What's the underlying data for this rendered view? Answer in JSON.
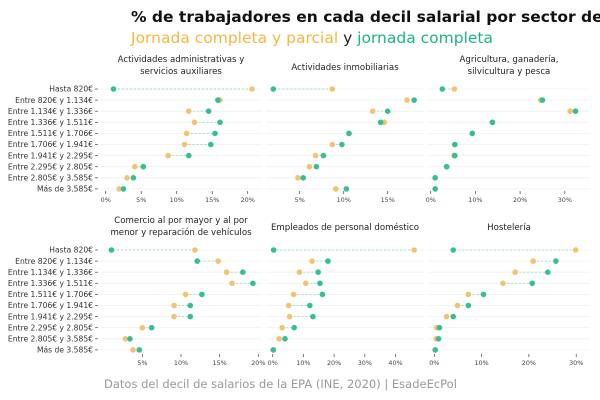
{
  "title": "% de trabajadores en cada decil salarial por sector de actividad",
  "subtitle": {
    "part1": "Jornada completa y parcial",
    "sep": " y ",
    "part2": "jornada completa"
  },
  "caption": "Datos del decil de salarios de la EPA (INE, 2020) | EsadeEcPol",
  "colors": {
    "all": "#f1c473",
    "full": "#35bf96",
    "title_all": "#f5b83f",
    "title_full": "#1db487"
  },
  "chart_data": {
    "type": "dot",
    "categories": [
      "Hasta 820€",
      "Entre 820€ y 1.134€",
      "Entre 1.134€ y 1.336€",
      "Entre 1.336€ y 1.511€",
      "Entre 1.511€ y 1.706€",
      "Entre 1.706€ y 1.941€",
      "Entre 1.941€ y 2.295€",
      "Entre 2.295€ y 2.805€",
      "Entre 2.805€ y 3.585€",
      "Más de 3.585€"
    ],
    "series_names": [
      "Jornada completa y parcial",
      "jornada completa"
    ],
    "grid": true,
    "panels": [
      {
        "title": [
          "Actividades administrativas y",
          "servicios auxiliares"
        ],
        "xticks": [
          "0%",
          "5%",
          "10%",
          "15%",
          "20%"
        ],
        "xtick_values": [
          0,
          5,
          10,
          15,
          20
        ],
        "all": [
          20.6,
          16.1,
          11.7,
          12.5,
          11.4,
          11.1,
          8.8,
          4.1,
          3.0,
          1.9
        ],
        "full": [
          1.1,
          15.8,
          14.5,
          16.1,
          15.4,
          14.8,
          11.7,
          5.3,
          3.9,
          2.5
        ]
      },
      {
        "title": [
          "Actividades inmobiliarias"
        ],
        "xticks": [
          "5%",
          "10%",
          "15%"
        ],
        "xtick_values": [
          5,
          10,
          15
        ],
        "all": [
          8.7,
          17.2,
          13.3,
          14.6,
          10.6,
          8.7,
          6.8,
          6.1,
          4.8,
          9.1
        ],
        "full": [
          2.0,
          18.0,
          15.0,
          14.2,
          10.6,
          9.8,
          7.7,
          6.9,
          5.4,
          10.3
        ]
      },
      {
        "title": [
          "Agricultura, ganadería,",
          "silvicultura y pesca"
        ],
        "xticks": [
          "0%",
          "10%",
          "20%",
          "30%"
        ],
        "xtick_values": [
          0,
          10,
          20,
          30
        ],
        "all": [
          5.3,
          24.6,
          31.2,
          13.8,
          9.3,
          5.4,
          5.2,
          3.5,
          1.0,
          1.0
        ],
        "full": [
          2.6,
          25.0,
          32.4,
          13.8,
          9.3,
          5.4,
          5.4,
          3.6,
          1.0,
          1.0
        ]
      },
      {
        "title": [
          "Comercio al por mayor y al por",
          "menor y reparación de vehículos"
        ],
        "xticks": [
          "5%",
          "10%",
          "15%",
          "20%"
        ],
        "xtick_values": [
          5,
          10,
          15,
          20
        ],
        "all": [
          11.8,
          14.8,
          15.9,
          16.6,
          10.6,
          9.1,
          9.1,
          5.0,
          2.8,
          3.8
        ],
        "full": [
          1.0,
          12.1,
          18.0,
          19.3,
          12.7,
          11.2,
          11.2,
          6.2,
          3.4,
          4.6
        ]
      },
      {
        "title": [
          "Empleados de personal doméstico"
        ],
        "xticks": [
          "0%",
          "10%",
          "20%",
          "30%",
          "40%"
        ],
        "xtick_values": [
          0,
          10,
          20,
          30,
          40
        ],
        "all": [
          46.1,
          12.8,
          8.7,
          10.8,
          6.8,
          5.2,
          5.5,
          3.1,
          2.1,
          0.2
        ],
        "full": [
          0.3,
          18.0,
          14.8,
          15.4,
          16.2,
          12.1,
          13.1,
          7.0,
          4.0,
          0.2
        ]
      },
      {
        "title": [
          "Hostelería"
        ],
        "xticks": [
          "0%",
          "10%",
          "20%",
          "30%"
        ],
        "xtick_values": [
          0,
          10,
          20,
          30
        ],
        "all": [
          29.9,
          20.9,
          17.1,
          14.5,
          7.2,
          4.9,
          2.6,
          0.5,
          0.4,
          0.2
        ],
        "full": [
          4.0,
          25.7,
          24.0,
          20.7,
          10.4,
          7.2,
          4.0,
          1.1,
          0.9,
          0.2
        ]
      }
    ]
  }
}
